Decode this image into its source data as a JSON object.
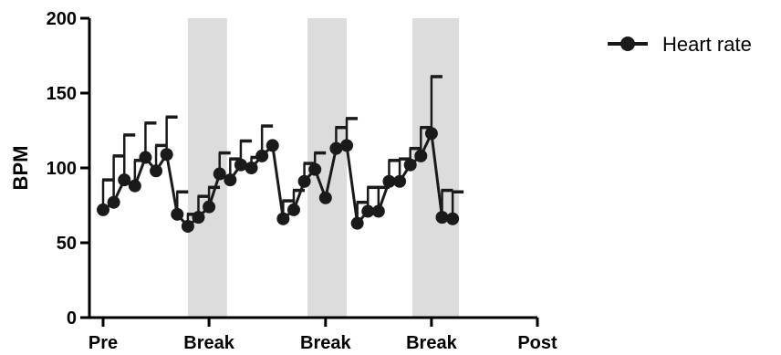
{
  "chart_data": {
    "type": "line",
    "ylabel": "BPM",
    "ylim": [
      0,
      200
    ],
    "yticks": [
      0,
      50,
      100,
      150,
      200
    ],
    "xlim": [
      0,
      41
    ],
    "xtick_positions": [
      0,
      10,
      21,
      31,
      41
    ],
    "xtick_labels": [
      "Pre",
      "Break",
      "Break",
      "Break",
      "Post"
    ],
    "break_regions": [
      [
        8,
        11.7
      ],
      [
        19.3,
        23
      ],
      [
        29.2,
        33.6
      ]
    ],
    "legend": "top-right",
    "colors": {
      "line": "#1a1a1a",
      "break_band": "#dcdcdc",
      "axis": "#000000"
    },
    "series": [
      {
        "name": "Heart rate",
        "x": [
          0,
          1,
          2,
          3,
          4,
          5,
          6,
          7,
          8,
          9,
          10,
          11,
          12,
          13,
          14,
          15,
          16,
          17,
          18,
          19,
          20,
          21,
          22,
          23,
          24,
          25,
          26,
          27,
          28,
          29,
          30,
          31,
          32,
          33,
          34,
          35,
          36,
          37,
          38,
          39,
          40,
          41
        ],
        "values": [
          72,
          77,
          92,
          88,
          107,
          98,
          109,
          69,
          61,
          67,
          74,
          96,
          92,
          102,
          100,
          108,
          115,
          66,
          72,
          91,
          99,
          80,
          113,
          115,
          63,
          71,
          71,
          91,
          91,
          102,
          108,
          123,
          67,
          66,
          0,
          0,
          0,
          0,
          0,
          0,
          0,
          0
        ],
        "error_upper": [
          92,
          108,
          122,
          105,
          130,
          115,
          134,
          84,
          69,
          81,
          87,
          110,
          106,
          118,
          107,
          128,
          115,
          78,
          85,
          103,
          110,
          80,
          127,
          133,
          77,
          87,
          87,
          105,
          106,
          113,
          127,
          161,
          85,
          84,
          0,
          0,
          0,
          0,
          0,
          0,
          0,
          0
        ]
      }
    ]
  }
}
